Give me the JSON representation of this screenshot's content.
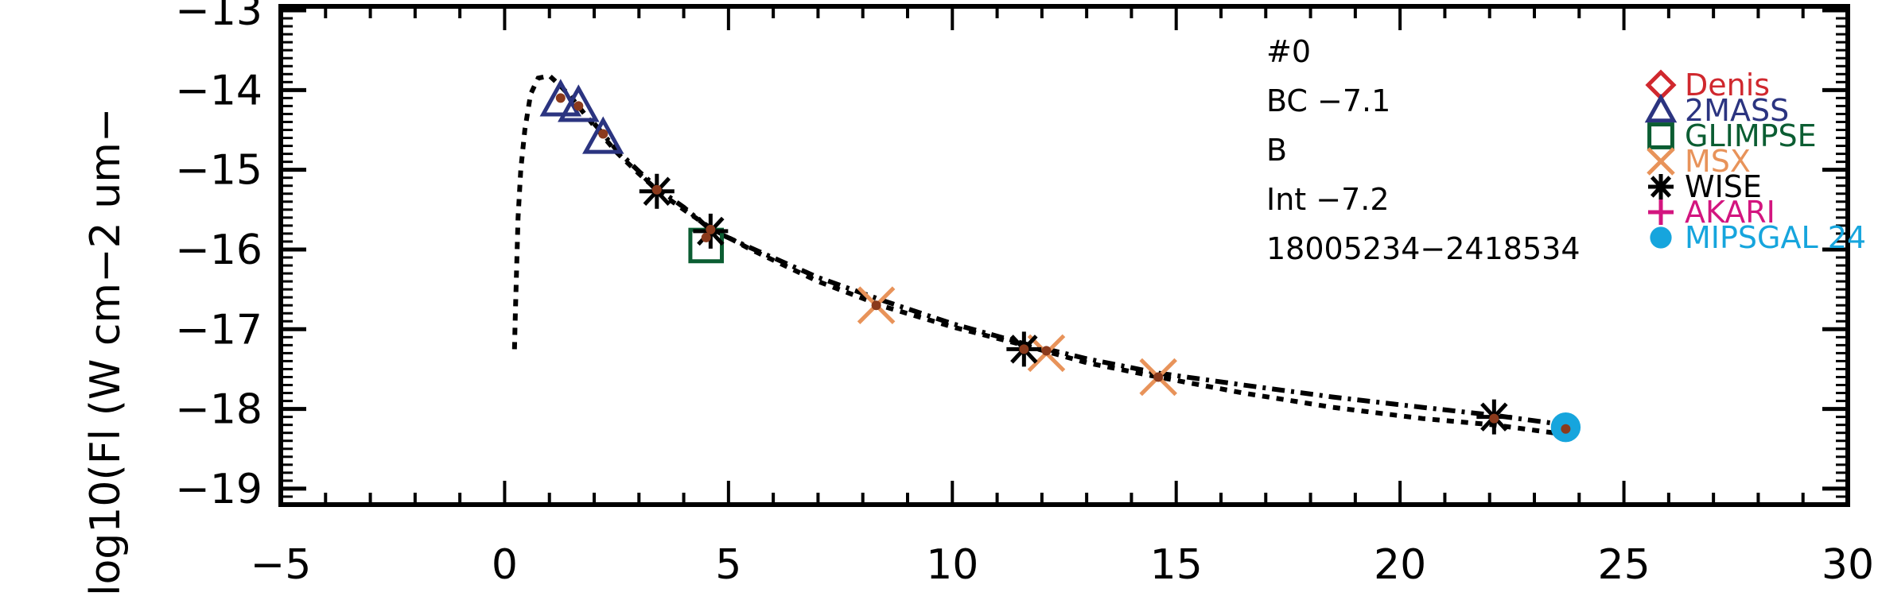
{
  "chart_data": {
    "type": "scatter",
    "title": "",
    "xlabel": "",
    "ylabel": "log10(Fl (W cm−2 um−",
    "xlim": [
      -5,
      30
    ],
    "ylim": [
      -19.2,
      -12.95
    ],
    "x_ticks": [
      -5,
      0,
      5,
      10,
      15,
      20,
      25,
      30
    ],
    "x_tick_labels": [
      "−5",
      "0",
      "5",
      "10",
      "15",
      "20",
      "25",
      "30"
    ],
    "y_ticks": [
      -19,
      -18,
      -17,
      -16,
      -15,
      -14,
      -13
    ],
    "y_tick_labels": [
      "−19",
      "−18",
      "−17",
      "−16",
      "−15",
      "−14",
      "−13"
    ],
    "grid": false,
    "legend_position": "top-right",
    "annotations": [
      "#0",
      "BC −7.1",
      "B",
      "Int −7.2",
      "18005234−2418534"
    ],
    "series": [
      {
        "name": "Denis",
        "marker": "diamond",
        "color": "#d0282e",
        "points": []
      },
      {
        "name": "2MASS",
        "marker": "triangle",
        "color": "#2b3480",
        "points": [
          [
            1.25,
            -14.13
          ],
          [
            1.65,
            -14.2
          ],
          [
            2.2,
            -14.6
          ]
        ]
      },
      {
        "name": "GLIMPSE",
        "marker": "square",
        "color": "#0b5d32",
        "points": [
          [
            4.5,
            -15.95
          ]
        ]
      },
      {
        "name": "MSX",
        "marker": "x",
        "color": "#e8935a",
        "points": [
          [
            8.3,
            -16.7
          ],
          [
            12.1,
            -17.3
          ],
          [
            14.6,
            -17.6
          ]
        ]
      },
      {
        "name": "WISE",
        "marker": "asterisk",
        "color": "#000000",
        "points": [
          [
            3.4,
            -15.27
          ],
          [
            4.6,
            -15.77
          ],
          [
            11.6,
            -17.25
          ],
          [
            22.1,
            -18.1
          ]
        ]
      },
      {
        "name": "AKARI",
        "marker": "plus",
        "color": "#d3157f",
        "points": []
      },
      {
        "name": "MIPSGAL 24",
        "marker": "circle",
        "color": "#16a5dd",
        "points": [
          [
            23.7,
            -18.23
          ]
        ]
      }
    ],
    "model_points": {
      "color": "#8b3a1c",
      "points": [
        [
          1.25,
          -14.1
        ],
        [
          1.65,
          -14.2
        ],
        [
          2.2,
          -14.55
        ],
        [
          3.4,
          -15.25
        ],
        [
          4.5,
          -15.85
        ],
        [
          4.6,
          -15.75
        ],
        [
          8.3,
          -16.7
        ],
        [
          11.6,
          -17.25
        ],
        [
          12.1,
          -17.27
        ],
        [
          14.6,
          -17.6
        ],
        [
          22.1,
          -18.12
        ],
        [
          23.7,
          -18.25
        ]
      ]
    },
    "model_curves": [
      {
        "style": "dotted",
        "points": [
          [
            0.22,
            -17.25
          ],
          [
            0.24,
            -16.8
          ],
          [
            0.27,
            -16.2
          ],
          [
            0.3,
            -15.6
          ],
          [
            0.36,
            -15.0
          ],
          [
            0.45,
            -14.5
          ],
          [
            0.58,
            -14.05
          ],
          [
            0.75,
            -13.85
          ],
          [
            1.0,
            -13.82
          ],
          [
            1.25,
            -13.95
          ],
          [
            1.5,
            -14.1
          ],
          [
            2.0,
            -14.45
          ],
          [
            2.5,
            -14.78
          ],
          [
            3.0,
            -15.05
          ],
          [
            3.5,
            -15.3
          ],
          [
            4.0,
            -15.5
          ],
          [
            4.6,
            -15.73
          ],
          [
            5.5,
            -16.0
          ],
          [
            7.0,
            -16.4
          ],
          [
            8.5,
            -16.72
          ],
          [
            10.0,
            -16.97
          ],
          [
            11.6,
            -17.2
          ],
          [
            13.0,
            -17.42
          ],
          [
            14.6,
            -17.6
          ],
          [
            16.5,
            -17.8
          ],
          [
            18.5,
            -17.98
          ],
          [
            20.5,
            -18.12
          ],
          [
            22.1,
            -18.2
          ],
          [
            23.7,
            -18.32
          ]
        ]
      },
      {
        "style": "dash-dot",
        "points": [
          [
            2.0,
            -14.42
          ],
          [
            2.5,
            -14.75
          ],
          [
            3.0,
            -15.02
          ],
          [
            3.5,
            -15.27
          ],
          [
            4.0,
            -15.47
          ],
          [
            4.6,
            -15.75
          ],
          [
            5.5,
            -15.98
          ],
          [
            7.0,
            -16.35
          ],
          [
            8.5,
            -16.65
          ],
          [
            10.0,
            -16.93
          ],
          [
            11.6,
            -17.18
          ],
          [
            13.0,
            -17.37
          ],
          [
            14.6,
            -17.55
          ],
          [
            16.5,
            -17.7
          ],
          [
            18.5,
            -17.85
          ],
          [
            20.5,
            -17.98
          ],
          [
            22.1,
            -18.08
          ],
          [
            23.7,
            -18.2
          ]
        ]
      }
    ]
  }
}
